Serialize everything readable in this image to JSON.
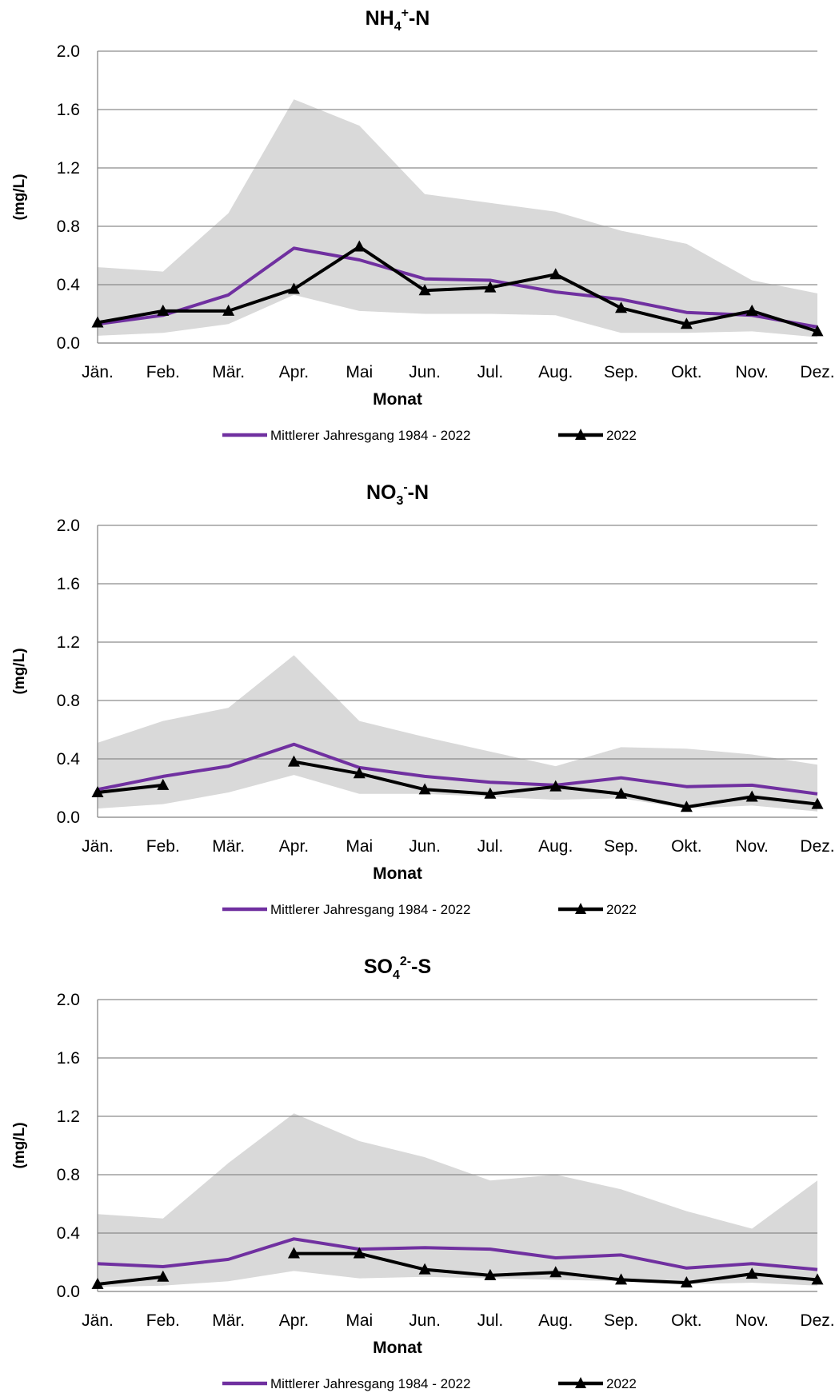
{
  "chart_data": [
    {
      "type": "line",
      "title": "NH4+-N",
      "title_parts": {
        "main": "NH",
        "sub": "4",
        "sup": "+",
        "suffix": "-N"
      },
      "xlabel": "Monat",
      "ylabel": "(mg/L)",
      "categories": [
        "Jän.",
        "Feb.",
        "Mär.",
        "Apr.",
        "Mai",
        "Jun.",
        "Jul.",
        "Aug.",
        "Sep.",
        "Okt.",
        "Nov.",
        "Dez."
      ],
      "y_ticks": [
        "0.0",
        "0.4",
        "0.8",
        "1.2",
        "1.6",
        "2.0"
      ],
      "ylim": [
        0,
        2.0
      ],
      "grid": true,
      "range_band": {
        "min": [
          0.05,
          0.07,
          0.13,
          0.33,
          0.22,
          0.2,
          0.2,
          0.19,
          0.07,
          0.07,
          0.08,
          0.04
        ],
        "max": [
          0.52,
          0.49,
          0.89,
          1.67,
          1.49,
          1.02,
          0.96,
          0.9,
          0.77,
          0.68,
          0.43,
          0.34
        ],
        "color": "#d9d9d9"
      },
      "series": [
        {
          "name": "Mittlerer Jahresgang 1984 - 2022",
          "values": [
            0.13,
            0.19,
            0.33,
            0.65,
            0.57,
            0.44,
            0.43,
            0.35,
            0.3,
            0.21,
            0.19,
            0.11
          ],
          "color": "#7030a0",
          "marker": "none"
        },
        {
          "name": "2022",
          "values": [
            0.14,
            0.22,
            0.22,
            0.37,
            0.66,
            0.36,
            0.38,
            0.47,
            0.24,
            0.13,
            0.22,
            0.08
          ],
          "color": "#000000",
          "marker": "triangle"
        }
      ],
      "legend_position": "bottom"
    },
    {
      "type": "line",
      "title": "NO3--N",
      "title_parts": {
        "main": "NO",
        "sub": "3",
        "sup": "-",
        "suffix": "-N"
      },
      "xlabel": "Monat",
      "ylabel": "(mg/L)",
      "categories": [
        "Jän.",
        "Feb.",
        "Mär.",
        "Apr.",
        "Mai",
        "Jun.",
        "Jul.",
        "Aug.",
        "Sep.",
        "Okt.",
        "Nov.",
        "Dez."
      ],
      "y_ticks": [
        "0.0",
        "0.4",
        "0.8",
        "1.2",
        "1.6",
        "2.0"
      ],
      "ylim": [
        0,
        2.0
      ],
      "grid": true,
      "range_band": {
        "min": [
          0.06,
          0.09,
          0.17,
          0.29,
          0.16,
          0.16,
          0.14,
          0.12,
          0.13,
          0.06,
          0.08,
          0.04
        ],
        "max": [
          0.51,
          0.66,
          0.75,
          1.11,
          0.66,
          0.55,
          0.45,
          0.35,
          0.48,
          0.47,
          0.43,
          0.36
        ],
        "color": "#d9d9d9"
      },
      "series": [
        {
          "name": "Mittlerer Jahresgang 1984 - 2022",
          "values": [
            0.19,
            0.28,
            0.35,
            0.5,
            0.34,
            0.28,
            0.24,
            0.22,
            0.27,
            0.21,
            0.22,
            0.16
          ],
          "color": "#7030a0",
          "marker": "none"
        },
        {
          "name": "2022",
          "values": [
            0.17,
            0.22,
            null,
            0.38,
            0.3,
            0.19,
            0.16,
            0.21,
            0.16,
            0.07,
            0.14,
            0.09
          ],
          "color": "#000000",
          "marker": "triangle"
        }
      ],
      "legend_position": "bottom"
    },
    {
      "type": "line",
      "title": "SO42--S",
      "title_parts": {
        "main": "SO",
        "sub": "4",
        "sup": "2-",
        "suffix": "-S"
      },
      "xlabel": "Monat",
      "ylabel": "(mg/L)",
      "categories": [
        "Jän.",
        "Feb.",
        "Mär.",
        "Apr.",
        "Mai",
        "Jun.",
        "Jul.",
        "Aug.",
        "Sep.",
        "Okt.",
        "Nov.",
        "Dez."
      ],
      "y_ticks": [
        "0.0",
        "0.4",
        "0.8",
        "1.2",
        "1.6",
        "2.0"
      ],
      "ylim": [
        0,
        2.0
      ],
      "grid": true,
      "range_band": {
        "min": [
          0.03,
          0.04,
          0.07,
          0.14,
          0.09,
          0.1,
          0.09,
          0.08,
          0.07,
          0.05,
          0.06,
          0.04
        ],
        "max": [
          0.53,
          0.5,
          0.88,
          1.22,
          1.03,
          0.92,
          0.76,
          0.8,
          0.7,
          0.55,
          0.43,
          0.76
        ],
        "color": "#d9d9d9"
      },
      "series": [
        {
          "name": "Mittlerer Jahresgang 1984 - 2022",
          "values": [
            0.19,
            0.17,
            0.22,
            0.36,
            0.29,
            0.3,
            0.29,
            0.23,
            0.25,
            0.16,
            0.19,
            0.15
          ],
          "color": "#7030a0",
          "marker": "none"
        },
        {
          "name": "2022",
          "values": [
            0.05,
            0.1,
            null,
            0.26,
            0.26,
            0.15,
            0.11,
            0.13,
            0.08,
            0.06,
            0.12,
            0.08
          ],
          "color": "#000000",
          "marker": "triangle"
        }
      ],
      "legend_position": "bottom"
    }
  ]
}
